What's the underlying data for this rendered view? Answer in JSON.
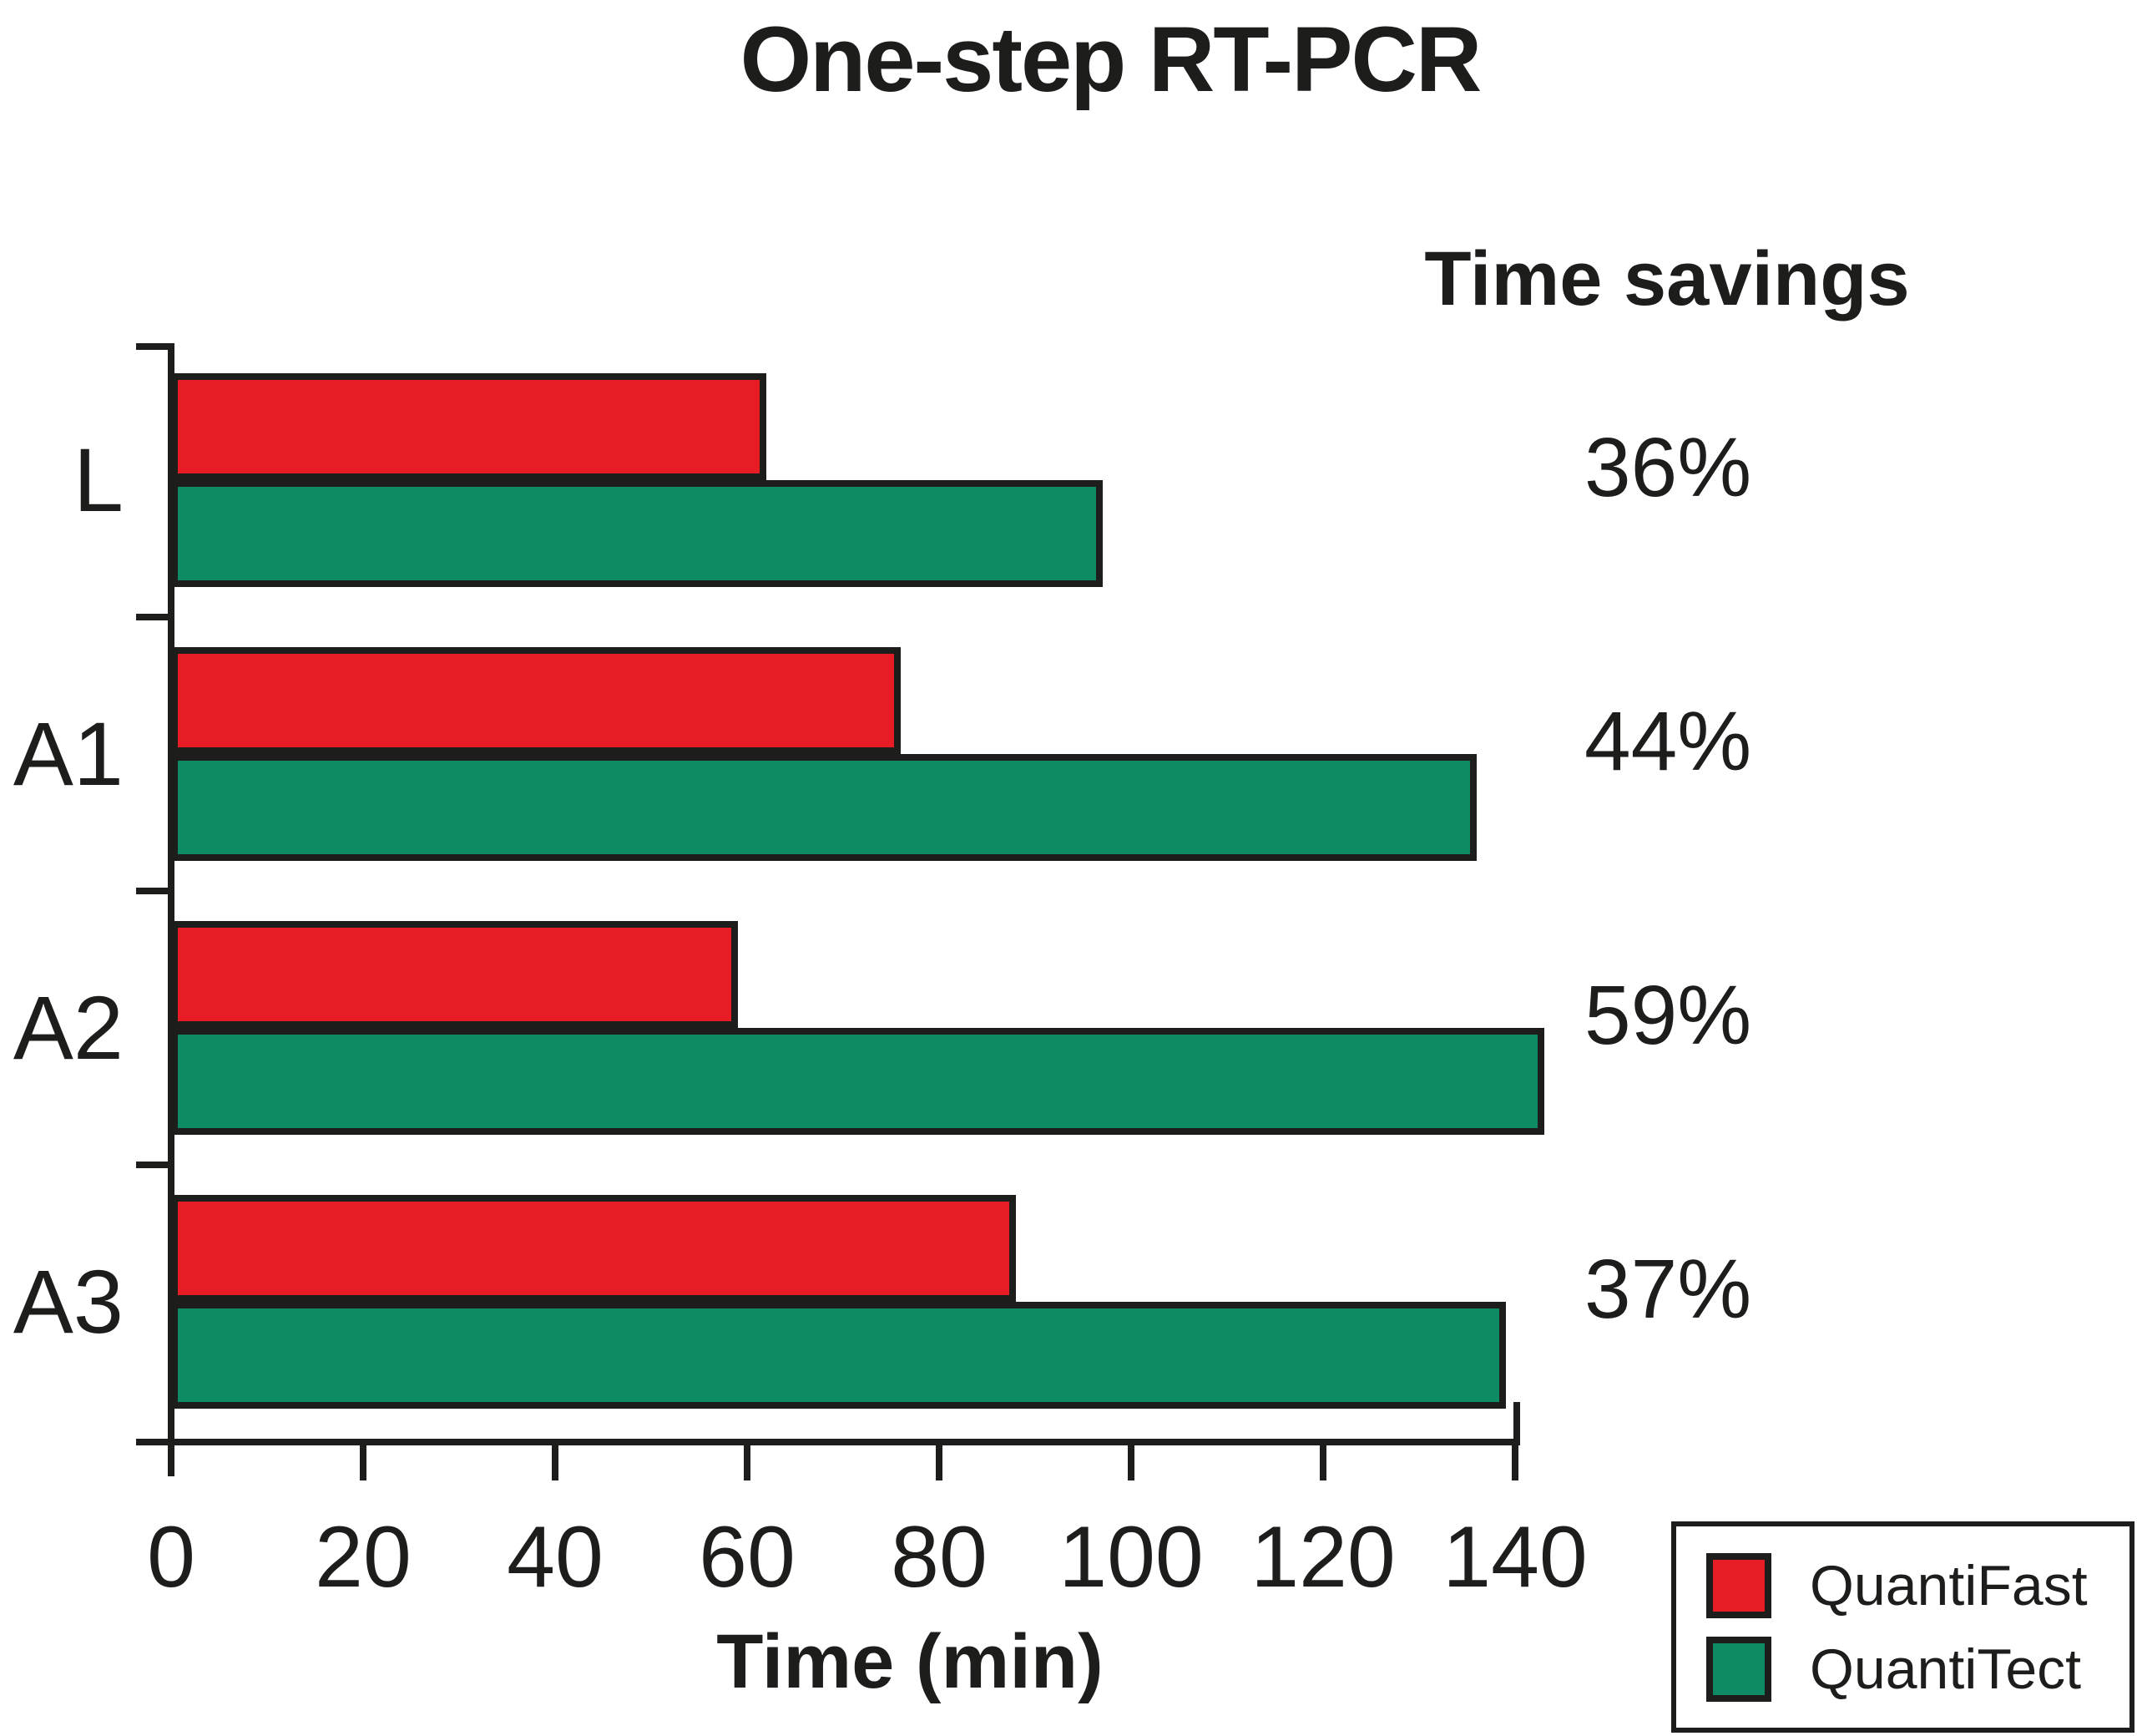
{
  "chart": {
    "title": "One-step RT-PCR",
    "savings_header": "Time savings",
    "x_axis_label": "Time (min)"
  },
  "chart_data": {
    "type": "bar",
    "orientation": "horizontal",
    "title": "One-step RT-PCR",
    "categories": [
      "L",
      "A1",
      "A2",
      "A3"
    ],
    "series": [
      {
        "name": "QuantiFast",
        "color": "#e81c24",
        "values": [
          62,
          76,
          59,
          88
        ]
      },
      {
        "name": "QuantiTect",
        "color": "#0e8b64",
        "values": [
          97,
          136,
          143,
          139
        ]
      }
    ],
    "time_savings": [
      "36%",
      "44%",
      "59%",
      "37%"
    ],
    "xlabel": "Time (min)",
    "xlim": [
      0,
      140
    ],
    "xticks": [
      0,
      20,
      40,
      60,
      80,
      100,
      120,
      140
    ],
    "grid": false,
    "legend_position": "bottom-right"
  },
  "legend": {
    "items": [
      {
        "label": "QuantiFast",
        "color": "#e81c24"
      },
      {
        "label": "QuantiTect",
        "color": "#0e8b64"
      }
    ]
  },
  "colors": {
    "ink": "#1d1d1b",
    "red": "#e81c24",
    "green": "#0e8b64"
  }
}
